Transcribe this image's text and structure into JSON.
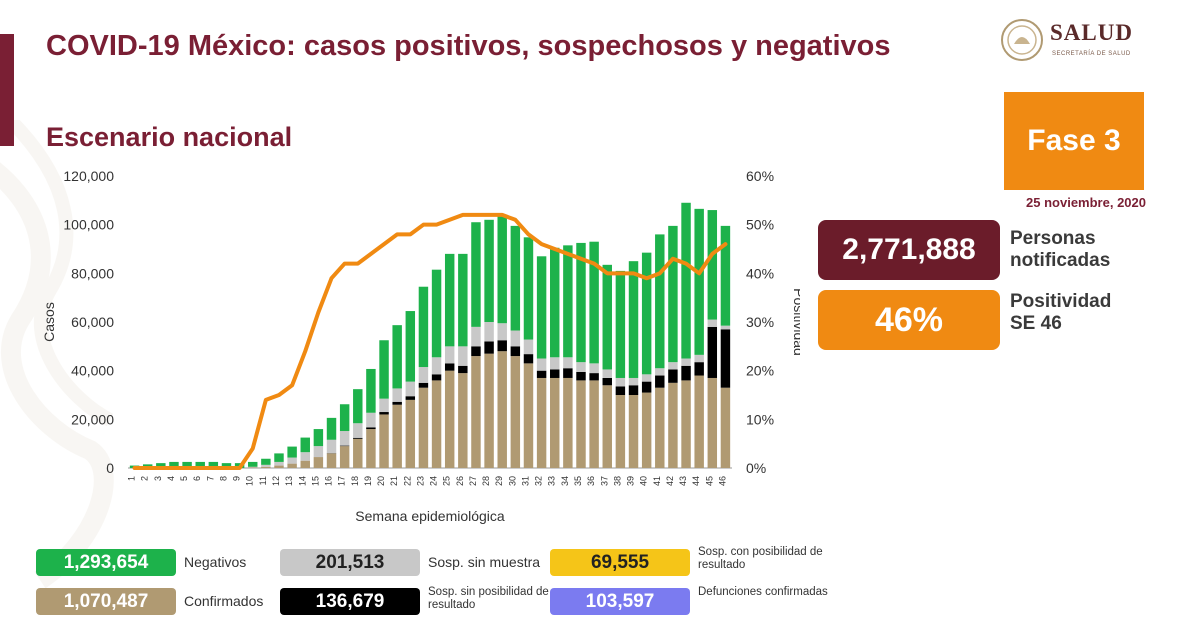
{
  "header": {
    "title": "COVID-19 México: casos positivos, sospechosos y negativos",
    "subtitle": "Escenario nacional"
  },
  "logo": {
    "name": "SALUD",
    "sub": "SECRETARÍA DE SALUD"
  },
  "phase": {
    "label": "Fase 3",
    "date": "25 noviembre, 2020"
  },
  "kpis": [
    {
      "value": "2,771,888",
      "label_line1": "Personas",
      "label_line2": "notificadas"
    },
    {
      "value": "46%",
      "label_line1": "Positividad",
      "label_line2": "SE 46"
    }
  ],
  "legend": [
    {
      "value": "1,293,654",
      "label": "Negativos",
      "color": "#1db24b",
      "text_color": "#ffffff"
    },
    {
      "value": "201,513",
      "label": "Sosp. sin muestra",
      "color": "#c8c8c8",
      "text_color": "#222222"
    },
    {
      "value": "69,555",
      "label": "Sosp. con posibilidad de resultado",
      "color": "#f5c518",
      "text_color": "#222222"
    },
    {
      "value": "1,070,487",
      "label": "Confirmados",
      "color": "#b09a72",
      "text_color": "#ffffff"
    },
    {
      "value": "136,679",
      "label": "Sosp. sin posibilidad de resultado",
      "color": "#000000",
      "text_color": "#ffffff"
    },
    {
      "value": "103,597",
      "label": "Defunciones confirmadas",
      "color": "#7b7bf0",
      "text_color": "#ffffff"
    }
  ],
  "colors": {
    "primary": "#7a1f34",
    "orange": "#f08a12",
    "negativos": "#1db24b",
    "confirmados": "#b09a72",
    "sinmuestra": "#c8c8c8",
    "sinposibilidad": "#000000",
    "conposibilidad": "#f5c518"
  },
  "chart_data": {
    "type": "bar",
    "stacked": true,
    "xlabel": "Semana epidemiológica",
    "ylabel": "Casos",
    "y2label": "Positividad",
    "ylim": [
      0,
      120000
    ],
    "y2lim": [
      0,
      60
    ],
    "yticks": [
      "0",
      "20,000",
      "40,000",
      "60,000",
      "80,000",
      "100,000",
      "120,000"
    ],
    "y2ticks": [
      "0%",
      "10%",
      "20%",
      "30%",
      "40%",
      "50%",
      "60%"
    ],
    "grid": false,
    "categories": [
      "1",
      "2",
      "3",
      "4",
      "5",
      "6",
      "7",
      "8",
      "9",
      "10",
      "11",
      "12",
      "13",
      "14",
      "15",
      "16",
      "17",
      "18",
      "19",
      "20",
      "21",
      "22",
      "23",
      "24",
      "25",
      "26",
      "27",
      "28",
      "29",
      "30",
      "31",
      "32",
      "33",
      "34",
      "35",
      "36",
      "37",
      "38",
      "39",
      "40",
      "41",
      "42",
      "43",
      "44",
      "45",
      "46"
    ],
    "series": [
      {
        "name": "Confirmados",
        "color": "#b09a72",
        "values": [
          0,
          0,
          0,
          0,
          0,
          0,
          0,
          0,
          0,
          200,
          500,
          1000,
          1800,
          3000,
          4500,
          6000,
          9000,
          12000,
          16000,
          22000,
          26000,
          28000,
          33000,
          36000,
          40000,
          39000,
          46000,
          47000,
          48000,
          46000,
          43000,
          37000,
          37000,
          37000,
          36000,
          36000,
          34000,
          30000,
          30000,
          31000,
          33000,
          35000,
          36000,
          38000,
          37000,
          33000
        ]
      },
      {
        "name": "Sosp. sin posibilidad de resultado",
        "color": "#000000",
        "values": [
          0,
          0,
          0,
          0,
          0,
          0,
          0,
          0,
          0,
          0,
          0,
          0,
          0,
          0,
          0,
          100,
          200,
          400,
          700,
          1000,
          1200,
          1500,
          2000,
          2500,
          3000,
          3000,
          4000,
          5000,
          4500,
          4000,
          3800,
          3000,
          3500,
          4000,
          3500,
          3000,
          3000,
          3500,
          4000,
          4500,
          5000,
          5500,
          6000,
          5500,
          21000,
          24000
        ]
      },
      {
        "name": "Sosp. con posibilidad de resultado",
        "color": "#f5c518",
        "values": [
          0,
          0,
          0,
          0,
          0,
          0,
          0,
          0,
          0,
          0,
          0,
          0,
          0,
          0,
          0,
          0,
          0,
          0,
          0,
          0,
          0,
          0,
          0,
          0,
          0,
          0,
          0,
          0,
          0,
          0,
          0,
          0,
          0,
          0,
          0,
          0,
          0,
          0,
          0,
          0,
          0,
          0,
          0,
          0,
          0,
          0
        ]
      },
      {
        "name": "Sosp. sin muestra",
        "color": "#c8c8c8",
        "values": [
          0,
          0,
          0,
          0,
          0,
          0,
          0,
          0,
          0,
          300,
          800,
          1500,
          2500,
          3500,
          4500,
          5500,
          6000,
          6000,
          6000,
          5500,
          5500,
          6000,
          6500,
          7000,
          7000,
          8000,
          8000,
          8000,
          7000,
          6500,
          6000,
          5000,
          5000,
          4500,
          4000,
          4000,
          3500,
          3500,
          3000,
          3000,
          3000,
          3000,
          3000,
          3000,
          3000,
          1500
        ]
      },
      {
        "name": "Negativos",
        "color": "#1db24b",
        "values": [
          1000,
          1500,
          2000,
          2500,
          2500,
          2500,
          2500,
          2000,
          2000,
          2000,
          2500,
          3500,
          4500,
          6000,
          7000,
          9000,
          11000,
          14000,
          18000,
          24000,
          26000,
          29000,
          33000,
          36000,
          38000,
          38000,
          43000,
          42000,
          44000,
          43000,
          42000,
          42000,
          45000,
          46000,
          49000,
          50000,
          43000,
          44000,
          48000,
          50000,
          55000,
          56000,
          64000,
          60000,
          45000,
          41000
        ]
      }
    ],
    "line": {
      "name": "Positividad",
      "axis": "right",
      "color": "#f08a12",
      "values": [
        0,
        0,
        0,
        0,
        0,
        0,
        0,
        0,
        0,
        4,
        14,
        15,
        17,
        24,
        32,
        39,
        42,
        42,
        44,
        46,
        48,
        48,
        50,
        50,
        51,
        52,
        52,
        52,
        52,
        51,
        48,
        46,
        45,
        44,
        43,
        42,
        40,
        40,
        40,
        39,
        40,
        43,
        42,
        40,
        44,
        46
      ]
    }
  }
}
